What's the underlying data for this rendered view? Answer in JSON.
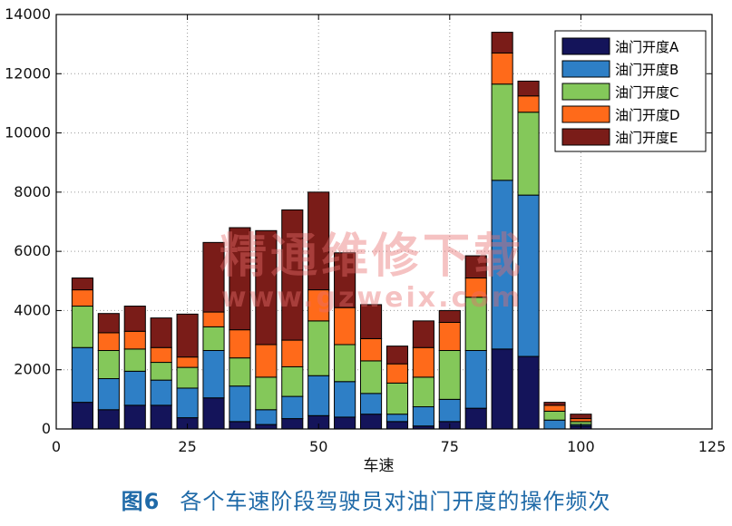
{
  "chart_data": {
    "type": "bar",
    "stacked": true,
    "xlabel": "车速",
    "ylabel": "",
    "xlim": [
      0,
      125
    ],
    "ylim": [
      0,
      14000
    ],
    "xticks": [
      0,
      25,
      50,
      75,
      100,
      125
    ],
    "yticks": [
      0,
      2000,
      4000,
      6000,
      8000,
      10000,
      12000,
      14000
    ],
    "grid": true,
    "legend_position": "top-right",
    "bar_width": 4,
    "x": [
      5,
      10,
      15,
      20,
      25,
      30,
      35,
      40,
      45,
      50,
      55,
      60,
      65,
      70,
      75,
      80,
      85,
      90,
      95,
      100
    ],
    "series": [
      {
        "name": "油门开度A",
        "color": "#14145a",
        "values": [
          900,
          650,
          800,
          800,
          380,
          1050,
          250,
          150,
          350,
          450,
          400,
          500,
          250,
          100,
          250,
          700,
          2700,
          2450,
          0,
          100
        ]
      },
      {
        "name": "油门开度B",
        "color": "#2e7fc6",
        "values": [
          1850,
          1050,
          1150,
          850,
          1000,
          1600,
          1200,
          500,
          750,
          1350,
          1200,
          700,
          250,
          650,
          750,
          1950,
          5700,
          5450,
          300,
          50
        ]
      },
      {
        "name": "油门开度C",
        "color": "#84c85a",
        "values": [
          1400,
          950,
          750,
          600,
          700,
          800,
          950,
          1100,
          1000,
          1850,
          1250,
          1100,
          1050,
          1000,
          1650,
          1800,
          3250,
          2800,
          300,
          100
        ]
      },
      {
        "name": "油门开度D",
        "color": "#ff6a1a",
        "values": [
          550,
          600,
          600,
          500,
          350,
          500,
          950,
          1100,
          900,
          1050,
          1250,
          750,
          650,
          1000,
          950,
          650,
          1050,
          550,
          200,
          100
        ]
      },
      {
        "name": "油门开度E",
        "color": "#7a1c18",
        "values": [
          400,
          650,
          850,
          1000,
          1450,
          2350,
          3450,
          3850,
          4400,
          3300,
          1850,
          1150,
          600,
          900,
          400,
          750,
          700,
          500,
          100,
          150
        ]
      }
    ]
  },
  "caption": {
    "figure_number": "图6",
    "text": "各个车速阶段驾驶员对油门开度的操作频次"
  },
  "watermark": {
    "chinese": "精通维修下载",
    "url": "www.gzweix.com"
  }
}
